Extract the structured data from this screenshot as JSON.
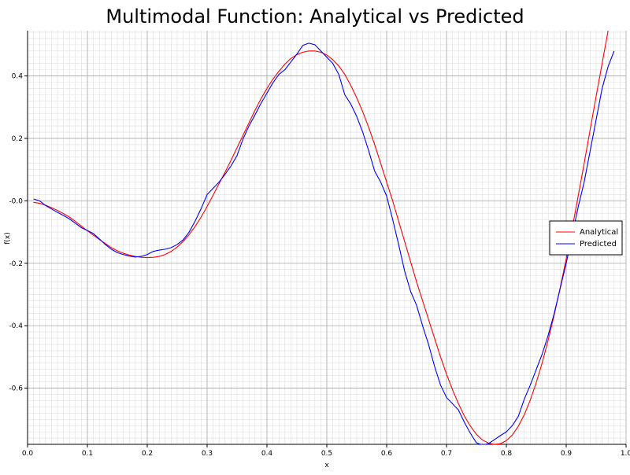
{
  "chart_data": {
    "type": "line",
    "title": "Multimodal Function: Analytical vs Predicted",
    "xlabel": "x",
    "ylabel": "f(x)",
    "xlim": [
      0.0,
      1.0
    ],
    "ylim": [
      -0.78,
      0.545
    ],
    "x_ticks": [
      0.0,
      0.1,
      0.2,
      0.3,
      0.4,
      0.5,
      0.6,
      0.7,
      0.8,
      0.9,
      1.0
    ],
    "x_tick_labels": [
      "0.0",
      "0.1",
      "0.2",
      "0.3",
      "0.4",
      "0.5",
      "0.6",
      "0.7",
      "0.8",
      "0.9",
      "1.0"
    ],
    "y_ticks": [
      -0.6,
      -0.4,
      -0.2,
      0.0,
      0.2,
      0.4
    ],
    "y_tick_labels": [
      "-0.6",
      "-0.4",
      "-0.2",
      "-0.0",
      "0.2",
      "0.4"
    ],
    "grid": true,
    "legend_position": "right",
    "series": [
      {
        "name": "Analytical",
        "color": "#ff0000",
        "points": [
          [
            0.01,
            -0.005
          ],
          [
            0.02,
            -0.008
          ],
          [
            0.03,
            -0.014
          ],
          [
            0.04,
            -0.022
          ],
          [
            0.05,
            -0.031
          ],
          [
            0.06,
            -0.041
          ],
          [
            0.07,
            -0.052
          ],
          [
            0.08,
            -0.066
          ],
          [
            0.09,
            -0.081
          ],
          [
            0.1,
            -0.096
          ],
          [
            0.11,
            -0.11
          ],
          [
            0.12,
            -0.124
          ],
          [
            0.13,
            -0.137
          ],
          [
            0.14,
            -0.15
          ],
          [
            0.15,
            -0.16
          ],
          [
            0.16,
            -0.168
          ],
          [
            0.17,
            -0.174
          ],
          [
            0.18,
            -0.178
          ],
          [
            0.19,
            -0.181
          ],
          [
            0.2,
            -0.182
          ],
          [
            0.21,
            -0.181
          ],
          [
            0.22,
            -0.178
          ],
          [
            0.23,
            -0.172
          ],
          [
            0.24,
            -0.162
          ],
          [
            0.25,
            -0.148
          ],
          [
            0.26,
            -0.13
          ],
          [
            0.27,
            -0.108
          ],
          [
            0.28,
            -0.082
          ],
          [
            0.29,
            -0.052
          ],
          [
            0.3,
            -0.018
          ],
          [
            0.31,
            0.018
          ],
          [
            0.32,
            0.055
          ],
          [
            0.33,
            0.092
          ],
          [
            0.34,
            0.13
          ],
          [
            0.35,
            0.17
          ],
          [
            0.36,
            0.21
          ],
          [
            0.37,
            0.25
          ],
          [
            0.38,
            0.29
          ],
          [
            0.39,
            0.327
          ],
          [
            0.4,
            0.36
          ],
          [
            0.41,
            0.39
          ],
          [
            0.42,
            0.415
          ],
          [
            0.43,
            0.438
          ],
          [
            0.44,
            0.456
          ],
          [
            0.45,
            0.468
          ],
          [
            0.46,
            0.476
          ],
          [
            0.47,
            0.48
          ],
          [
            0.48,
            0.48
          ],
          [
            0.49,
            0.476
          ],
          [
            0.5,
            0.467
          ],
          [
            0.51,
            0.452
          ],
          [
            0.52,
            0.432
          ],
          [
            0.53,
            0.405
          ],
          [
            0.54,
            0.37
          ],
          [
            0.55,
            0.33
          ],
          [
            0.56,
            0.285
          ],
          [
            0.57,
            0.235
          ],
          [
            0.58,
            0.18
          ],
          [
            0.59,
            0.12
          ],
          [
            0.6,
            0.06
          ],
          [
            0.61,
            0.0
          ],
          [
            0.62,
            -0.065
          ],
          [
            0.63,
            -0.13
          ],
          [
            0.64,
            -0.195
          ],
          [
            0.65,
            -0.26
          ],
          [
            0.66,
            -0.32
          ],
          [
            0.67,
            -0.38
          ],
          [
            0.68,
            -0.44
          ],
          [
            0.69,
            -0.5
          ],
          [
            0.7,
            -0.555
          ],
          [
            0.71,
            -0.605
          ],
          [
            0.72,
            -0.65
          ],
          [
            0.73,
            -0.69
          ],
          [
            0.74,
            -0.722
          ],
          [
            0.75,
            -0.748
          ],
          [
            0.76,
            -0.766
          ],
          [
            0.77,
            -0.776
          ],
          [
            0.78,
            -0.78
          ],
          [
            0.79,
            -0.778
          ],
          [
            0.8,
            -0.768
          ],
          [
            0.81,
            -0.75
          ],
          [
            0.82,
            -0.722
          ],
          [
            0.83,
            -0.685
          ],
          [
            0.84,
            -0.638
          ],
          [
            0.85,
            -0.582
          ],
          [
            0.86,
            -0.518
          ],
          [
            0.87,
            -0.445
          ],
          [
            0.88,
            -0.365
          ],
          [
            0.89,
            -0.278
          ],
          [
            0.9,
            -0.185
          ],
          [
            0.91,
            -0.088
          ],
          [
            0.92,
            0.015
          ],
          [
            0.93,
            0.12
          ],
          [
            0.94,
            0.228
          ],
          [
            0.95,
            0.335
          ],
          [
            0.96,
            0.44
          ],
          [
            0.97,
            0.545
          ]
        ]
      },
      {
        "name": "Predicted",
        "color": "#0000ff",
        "points": [
          [
            0.01,
            0.006
          ],
          [
            0.02,
            0.0
          ],
          [
            0.03,
            -0.015
          ],
          [
            0.04,
            -0.026
          ],
          [
            0.05,
            -0.037
          ],
          [
            0.06,
            -0.047
          ],
          [
            0.07,
            -0.058
          ],
          [
            0.08,
            -0.072
          ],
          [
            0.09,
            -0.086
          ],
          [
            0.1,
            -0.095
          ],
          [
            0.11,
            -0.105
          ],
          [
            0.12,
            -0.122
          ],
          [
            0.13,
            -0.14
          ],
          [
            0.14,
            -0.155
          ],
          [
            0.15,
            -0.166
          ],
          [
            0.16,
            -0.172
          ],
          [
            0.17,
            -0.177
          ],
          [
            0.18,
            -0.18
          ],
          [
            0.19,
            -0.178
          ],
          [
            0.2,
            -0.172
          ],
          [
            0.21,
            -0.162
          ],
          [
            0.22,
            -0.158
          ],
          [
            0.23,
            -0.155
          ],
          [
            0.24,
            -0.15
          ],
          [
            0.25,
            -0.14
          ],
          [
            0.26,
            -0.125
          ],
          [
            0.27,
            -0.1
          ],
          [
            0.28,
            -0.065
          ],
          [
            0.29,
            -0.025
          ],
          [
            0.3,
            0.02
          ],
          [
            0.31,
            0.04
          ],
          [
            0.32,
            0.06
          ],
          [
            0.33,
            0.085
          ],
          [
            0.34,
            0.112
          ],
          [
            0.35,
            0.145
          ],
          [
            0.36,
            0.198
          ],
          [
            0.37,
            0.24
          ],
          [
            0.38,
            0.275
          ],
          [
            0.39,
            0.312
          ],
          [
            0.4,
            0.345
          ],
          [
            0.41,
            0.378
          ],
          [
            0.42,
            0.405
          ],
          [
            0.43,
            0.42
          ],
          [
            0.44,
            0.445
          ],
          [
            0.45,
            0.47
          ],
          [
            0.46,
            0.498
          ],
          [
            0.47,
            0.505
          ],
          [
            0.48,
            0.5
          ],
          [
            0.49,
            0.48
          ],
          [
            0.5,
            0.46
          ],
          [
            0.51,
            0.44
          ],
          [
            0.52,
            0.405
          ],
          [
            0.53,
            0.34
          ],
          [
            0.54,
            0.31
          ],
          [
            0.55,
            0.27
          ],
          [
            0.56,
            0.22
          ],
          [
            0.57,
            0.16
          ],
          [
            0.58,
            0.095
          ],
          [
            0.59,
            0.06
          ],
          [
            0.6,
            0.015
          ],
          [
            0.61,
            -0.06
          ],
          [
            0.62,
            -0.14
          ],
          [
            0.63,
            -0.225
          ],
          [
            0.64,
            -0.29
          ],
          [
            0.65,
            -0.335
          ],
          [
            0.66,
            -0.4
          ],
          [
            0.67,
            -0.46
          ],
          [
            0.68,
            -0.53
          ],
          [
            0.69,
            -0.59
          ],
          [
            0.7,
            -0.63
          ],
          [
            0.71,
            -0.65
          ],
          [
            0.72,
            -0.67
          ],
          [
            0.73,
            -0.71
          ],
          [
            0.74,
            -0.745
          ],
          [
            0.75,
            -0.775
          ],
          [
            0.76,
            -0.782
          ],
          [
            0.77,
            -0.778
          ],
          [
            0.78,
            -0.765
          ],
          [
            0.79,
            -0.752
          ],
          [
            0.8,
            -0.74
          ],
          [
            0.81,
            -0.72
          ],
          [
            0.82,
            -0.69
          ],
          [
            0.83,
            -0.635
          ],
          [
            0.84,
            -0.59
          ],
          [
            0.85,
            -0.54
          ],
          [
            0.86,
            -0.49
          ],
          [
            0.87,
            -0.43
          ],
          [
            0.88,
            -0.36
          ],
          [
            0.89,
            -0.28
          ],
          [
            0.9,
            -0.2
          ],
          [
            0.91,
            -0.11
          ],
          [
            0.92,
            -0.02
          ],
          [
            0.93,
            0.06
          ],
          [
            0.94,
            0.16
          ],
          [
            0.95,
            0.26
          ],
          [
            0.96,
            0.36
          ],
          [
            0.97,
            0.43
          ],
          [
            0.98,
            0.48
          ]
        ]
      }
    ]
  }
}
